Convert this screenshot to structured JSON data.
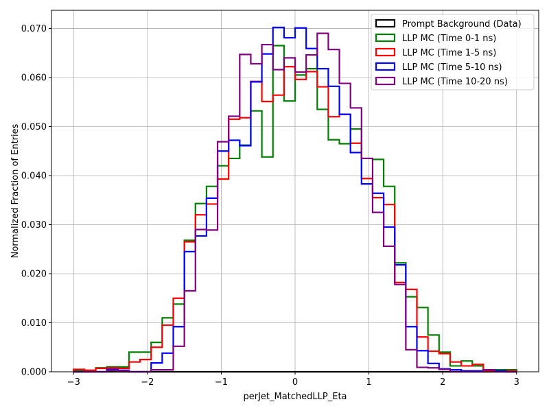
{
  "chart_data": {
    "type": "histogram-step",
    "xlabel": "perJet_MatchedLLP_Eta",
    "ylabel": "Normalized Fraction of Entries",
    "xlim": [
      -3.3,
      3.3
    ],
    "ylim": [
      0,
      0.0737
    ],
    "x_ticks": [
      -3,
      -2,
      -1,
      0,
      1,
      2,
      3
    ],
    "y_ticks": [
      0.0,
      0.01,
      0.02,
      0.03,
      0.04,
      0.05,
      0.06,
      0.07
    ],
    "x_tick_labels": [
      "−3",
      "−2",
      "−1",
      "0",
      "1",
      "2",
      "3"
    ],
    "y_tick_labels": [
      "0.000",
      "0.010",
      "0.020",
      "0.030",
      "0.040",
      "0.050",
      "0.060",
      "0.070"
    ],
    "grid": true,
    "legend_position": "top-right",
    "bin_edges": [
      -3.0,
      -2.85,
      -2.7,
      -2.55,
      -2.4,
      -2.25,
      -2.1,
      -1.95,
      -1.8,
      -1.65,
      -1.5,
      -1.35,
      -1.2,
      -1.05,
      -0.9,
      -0.75,
      -0.6,
      -0.45,
      -0.3,
      -0.15,
      0.0,
      0.15,
      0.3,
      0.45,
      0.6,
      0.75,
      0.9,
      1.05,
      1.2,
      1.35,
      1.5,
      1.65,
      1.8,
      1.95,
      2.1,
      2.25,
      2.4,
      2.55,
      2.7,
      2.85,
      3.0
    ],
    "series": [
      {
        "name": "Prompt Background (Data)",
        "color": "#000000",
        "values": [
          0,
          0,
          0,
          0,
          0,
          0,
          0,
          0,
          0,
          0,
          0,
          0,
          0,
          0,
          0,
          0,
          0,
          0,
          0,
          0,
          0,
          0,
          0,
          0,
          0,
          0,
          0,
          0,
          0,
          0,
          0,
          0,
          0,
          0,
          0,
          0,
          0,
          0,
          0,
          0
        ]
      },
      {
        "name": "LLP MC (Time 0-1 ns)",
        "color": "#008000",
        "values": [
          0.0003,
          0.0003,
          0.0008,
          0.001,
          0.001,
          0.004,
          0.004,
          0.006,
          0.011,
          0.0138,
          0.0268,
          0.0343,
          0.0378,
          0.042,
          0.0435,
          0.0462,
          0.0532,
          0.0438,
          0.0665,
          0.0552,
          0.0605,
          0.0618,
          0.0535,
          0.0473,
          0.0465,
          0.0495,
          0.0435,
          0.0433,
          0.0378,
          0.0222,
          0.0153,
          0.0131,
          0.0075,
          0.004,
          0.0012,
          0.0022,
          0.0012,
          0.0004,
          0.0004,
          0.0004
        ]
      },
      {
        "name": "LLP MC (Time 1-5 ns)",
        "color": "#ff0000",
        "values": [
          0.0005,
          0.0003,
          0.0007,
          0.0008,
          0.0007,
          0.002,
          0.0025,
          0.005,
          0.0095,
          0.015,
          0.0265,
          0.032,
          0.0342,
          0.0393,
          0.0515,
          0.0518,
          0.0592,
          0.0551,
          0.0564,
          0.0622,
          0.0596,
          0.0612,
          0.0581,
          0.052,
          0.0525,
          0.0466,
          0.0394,
          0.0355,
          0.0341,
          0.0182,
          0.0168,
          0.0071,
          0.0042,
          0.0037,
          0.002,
          0.0012,
          0.0015,
          0.0002,
          0.0002,
          0.0002
        ]
      },
      {
        "name": "LLP MC (Time 5-10 ns)",
        "color": "#0000ff",
        "values": [
          0,
          0,
          0,
          0.0005,
          0.0003,
          0,
          0,
          0.0018,
          0.0038,
          0.0092,
          0.0245,
          0.0277,
          0.0354,
          0.045,
          0.0472,
          0.0461,
          0.0591,
          0.0648,
          0.0702,
          0.0681,
          0.0701,
          0.0659,
          0.0618,
          0.0582,
          0.0525,
          0.0447,
          0.0383,
          0.0364,
          0.0295,
          0.0218,
          0.0092,
          0.0043,
          0.0017,
          0.0006,
          0.0004,
          0.0002,
          0.0002,
          0.0004,
          0.0002,
          0
        ]
      },
      {
        "name": "LLP MC (Time 10-20 ns)",
        "color": "#800080",
        "values": [
          0,
          0,
          0,
          0.0003,
          0.0002,
          0,
          0,
          0.0004,
          0.0004,
          0.0052,
          0.0165,
          0.029,
          0.0289,
          0.0469,
          0.0521,
          0.0647,
          0.0628,
          0.0667,
          0.0616,
          0.064,
          0.0611,
          0.0646,
          0.069,
          0.0657,
          0.0588,
          0.0538,
          0.0435,
          0.0325,
          0.0256,
          0.0178,
          0.0045,
          0.0009,
          0.0008,
          0.0005,
          0,
          0,
          0,
          0.0004,
          0,
          0
        ]
      }
    ]
  }
}
